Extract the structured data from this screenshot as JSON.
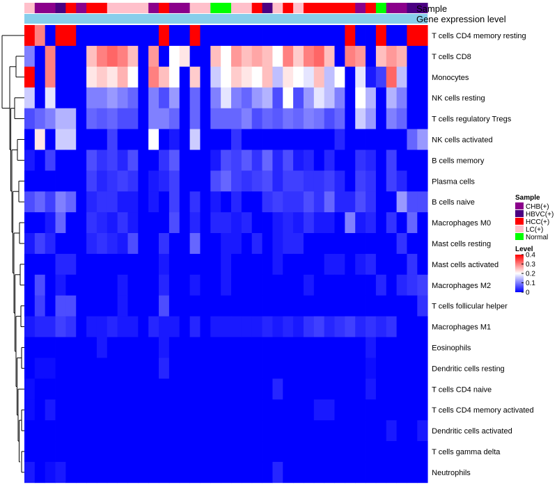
{
  "chart_data": {
    "type": "heatmap",
    "annotation_labels": {
      "sample": "Sample",
      "expression": "Gene expression level"
    },
    "row_labels": [
      "T cells CD4 memory resting",
      "T cells CD8",
      "Monocytes",
      "NK cells resting",
      "T cells regulatory  Tregs",
      "NK cells activated",
      "B cells memory",
      "Plasma cells",
      "B cells naive",
      "Macrophages M0",
      "Mast cells resting",
      "Mast cells activated",
      "Macrophages M2",
      "T cells follicular helper",
      "Macrophages M1",
      "Eosinophils",
      "Dendritic cells resting",
      "T cells CD4 naive",
      "T cells CD4 memory activated",
      "Dendritic cells activated",
      "T cells gamma delta",
      "Neutrophils"
    ],
    "sample_groups": [
      {
        "name": "CHB(+)",
        "color": "#8B008B"
      },
      {
        "name": "HBVC(+)",
        "color": "#4B0082"
      },
      {
        "name": "HCC(+)",
        "color": "#FF0000"
      },
      {
        "name": "LC(+)",
        "color": "#FFC0CB"
      },
      {
        "name": "Normal",
        "color": "#00FF00"
      }
    ],
    "column_groups": [
      3,
      0,
      0,
      1,
      2,
      0,
      2,
      2,
      3,
      3,
      3,
      3,
      0,
      2,
      0,
      0,
      3,
      3,
      4,
      4,
      3,
      3,
      2,
      1,
      3,
      2,
      3,
      2,
      2,
      2,
      2,
      2,
      0,
      2,
      4,
      0,
      0,
      1,
      1
    ],
    "expression_bar_color": "#87CEEB",
    "values": [
      [
        0.4,
        0.3,
        0.0,
        0.4,
        0.4,
        0.0,
        0.0,
        0.0,
        0.0,
        0.0,
        0.0,
        0.0,
        0.0,
        0.4,
        0.0,
        0.0,
        0.4,
        0.0,
        0.0,
        0.0,
        0.0,
        0.0,
        0.0,
        0.0,
        0.0,
        0.0,
        0.0,
        0.0,
        0.0,
        0.0,
        0.0,
        0.4,
        0.0,
        0.0,
        0.4,
        0.0,
        0.0,
        0.4,
        0.4
      ],
      [
        0.1,
        0.0,
        0.3,
        0.0,
        0.0,
        0.0,
        0.25,
        0.3,
        0.32,
        0.3,
        0.25,
        0.0,
        0.28,
        0.0,
        0.2,
        0.22,
        0.0,
        0.0,
        0.25,
        0.2,
        0.28,
        0.25,
        0.27,
        0.25,
        0.2,
        0.3,
        0.24,
        0.3,
        0.32,
        0.25,
        0.0,
        0.3,
        0.28,
        0.0,
        0.25,
        0.28,
        0.26,
        0.0,
        0.0
      ],
      [
        0.4,
        0.0,
        0.3,
        0.0,
        0.0,
        0.0,
        0.22,
        0.24,
        0.22,
        0.26,
        0.2,
        0.0,
        0.3,
        0.25,
        0.2,
        0.0,
        0.24,
        0.0,
        0.16,
        0.2,
        0.24,
        0.22,
        0.2,
        0.25,
        0.15,
        0.22,
        0.2,
        0.18,
        0.25,
        0.15,
        0.2,
        0.0,
        0.18,
        0.02,
        0.05,
        0.32,
        0.15,
        0.0,
        0.0
      ],
      [
        0.16,
        0.0,
        0.18,
        0.0,
        0.0,
        0.0,
        0.1,
        0.1,
        0.12,
        0.1,
        0.08,
        0.0,
        0.1,
        0.06,
        0.12,
        0.0,
        0.08,
        0.0,
        0.1,
        0.18,
        0.1,
        0.08,
        0.12,
        0.14,
        0.06,
        0.2,
        0.06,
        0.12,
        0.18,
        0.15,
        0.1,
        0.0,
        0.2,
        0.14,
        0.0,
        0.14,
        0.1,
        0.0,
        0.0
      ],
      [
        0.06,
        0.08,
        0.1,
        0.14,
        0.14,
        0.0,
        0.08,
        0.07,
        0.08,
        0.06,
        0.06,
        0.0,
        0.1,
        0.1,
        0.08,
        0.0,
        0.08,
        0.0,
        0.08,
        0.08,
        0.08,
        0.1,
        0.06,
        0.08,
        0.07,
        0.09,
        0.08,
        0.1,
        0.09,
        0.06,
        0.08,
        0.0,
        0.16,
        0.12,
        0.0,
        0.1,
        0.08,
        0.0,
        0.0
      ],
      [
        0.0,
        0.22,
        0.0,
        0.16,
        0.16,
        0.0,
        0.0,
        0.0,
        0.05,
        0.0,
        0.0,
        0.0,
        0.2,
        0.0,
        0.02,
        0.0,
        0.16,
        0.0,
        0.0,
        0.0,
        0.04,
        0.0,
        0.0,
        0.0,
        0.0,
        0.0,
        0.0,
        0.0,
        0.0,
        0.0,
        0.03,
        0.0,
        0.0,
        0.0,
        0.0,
        0.0,
        0.0,
        0.08,
        0.12
      ],
      [
        0.02,
        0.0,
        0.05,
        0.0,
        0.0,
        0.0,
        0.06,
        0.04,
        0.05,
        0.03,
        0.06,
        0.0,
        0.0,
        0.04,
        0.07,
        0.0,
        0.0,
        0.0,
        0.02,
        0.06,
        0.05,
        0.07,
        0.04,
        0.08,
        0.03,
        0.06,
        0.02,
        0.03,
        0.0,
        0.03,
        0.0,
        0.0,
        0.04,
        0.03,
        0.0,
        0.05,
        0.0,
        0.0,
        0.0
      ],
      [
        0.0,
        0.0,
        0.0,
        0.0,
        0.0,
        0.0,
        0.05,
        0.03,
        0.04,
        0.05,
        0.04,
        0.0,
        0.02,
        0.03,
        0.05,
        0.0,
        0.0,
        0.0,
        0.06,
        0.08,
        0.05,
        0.04,
        0.05,
        0.06,
        0.03,
        0.05,
        0.05,
        0.04,
        0.04,
        0.05,
        0.03,
        0.0,
        0.05,
        0.04,
        0.0,
        0.05,
        0.03,
        0.0,
        0.0
      ],
      [
        0.06,
        0.08,
        0.05,
        0.1,
        0.08,
        0.0,
        0.03,
        0.04,
        0.04,
        0.02,
        0.02,
        0.0,
        0.02,
        0.0,
        0.05,
        0.0,
        0.04,
        0.0,
        0.02,
        0.0,
        0.03,
        0.0,
        0.0,
        0.04,
        0.05,
        0.04,
        0.04,
        0.06,
        0.04,
        0.08,
        0.03,
        0.03,
        0.06,
        0.04,
        0.0,
        0.0,
        0.12,
        0.06,
        0.06
      ],
      [
        0.0,
        0.0,
        0.02,
        0.08,
        0.0,
        0.0,
        0.04,
        0.03,
        0.02,
        0.04,
        0.02,
        0.0,
        0.0,
        0.0,
        0.06,
        0.0,
        0.03,
        0.0,
        0.03,
        0.03,
        0.02,
        0.03,
        0.0,
        0.0,
        0.02,
        0.03,
        0.02,
        0.04,
        0.02,
        0.02,
        0.0,
        0.1,
        0.02,
        0.03,
        0.0,
        0.04,
        0.0,
        0.08,
        0.0
      ],
      [
        0.02,
        0.05,
        0.03,
        0.0,
        0.0,
        0.0,
        0.03,
        0.04,
        0.03,
        0.02,
        0.06,
        0.0,
        0.0,
        0.04,
        0.0,
        0.0,
        0.08,
        0.0,
        0.0,
        0.02,
        0.02,
        0.0,
        0.03,
        0.0,
        0.02,
        0.03,
        0.03,
        0.0,
        0.0,
        0.0,
        0.0,
        0.0,
        0.0,
        0.0,
        0.0,
        0.0,
        0.04,
        0.0,
        0.0
      ],
      [
        0.0,
        0.0,
        0.0,
        0.03,
        0.03,
        0.0,
        0.0,
        0.0,
        0.0,
        0.0,
        0.0,
        0.0,
        0.0,
        0.02,
        0.0,
        0.0,
        0.0,
        0.0,
        0.0,
        0.02,
        0.0,
        0.0,
        0.0,
        0.0,
        0.02,
        0.0,
        0.0,
        0.0,
        0.0,
        0.02,
        0.02,
        0.0,
        0.02,
        0.03,
        0.0,
        0.0,
        0.0,
        0.04,
        0.0
      ],
      [
        0.0,
        0.06,
        0.0,
        0.02,
        0.0,
        0.0,
        0.0,
        0.0,
        0.0,
        0.02,
        0.0,
        0.0,
        0.0,
        0.03,
        0.0,
        0.0,
        0.02,
        0.0,
        0.0,
        0.02,
        0.0,
        0.0,
        0.0,
        0.0,
        0.0,
        0.0,
        0.0,
        0.02,
        0.0,
        0.0,
        0.0,
        0.0,
        0.0,
        0.0,
        0.03,
        0.0,
        0.03,
        0.04,
        0.05
      ],
      [
        0.0,
        0.05,
        0.0,
        0.06,
        0.06,
        0.0,
        0.0,
        0.0,
        0.0,
        0.02,
        0.0,
        0.0,
        0.0,
        0.06,
        0.0,
        0.0,
        0.0,
        0.0,
        0.0,
        0.0,
        0.0,
        0.0,
        0.0,
        0.0,
        0.0,
        0.0,
        0.0,
        0.0,
        0.0,
        0.0,
        0.0,
        0.0,
        0.0,
        0.0,
        0.0,
        0.0,
        0.0,
        0.0,
        0.04
      ],
      [
        0.02,
        0.03,
        0.03,
        0.05,
        0.04,
        0.0,
        0.02,
        0.02,
        0.03,
        0.02,
        0.02,
        0.0,
        0.03,
        0.02,
        0.02,
        0.0,
        0.03,
        0.0,
        0.02,
        0.02,
        0.02,
        0.02,
        0.02,
        0.03,
        0.02,
        0.03,
        0.02,
        0.04,
        0.05,
        0.03,
        0.04,
        0.05,
        0.03,
        0.04,
        0.03,
        0.04,
        0.0,
        0.0,
        0.0
      ],
      [
        0.0,
        0.0,
        0.0,
        0.0,
        0.0,
        0.0,
        0.0,
        0.02,
        0.0,
        0.0,
        0.0,
        0.0,
        0.0,
        0.02,
        0.0,
        0.0,
        0.0,
        0.0,
        0.0,
        0.0,
        0.0,
        0.0,
        0.0,
        0.0,
        0.0,
        0.0,
        0.0,
        0.0,
        0.0,
        0.0,
        0.0,
        0.0,
        0.0,
        0.02,
        0.0,
        0.0,
        0.0,
        0.0,
        0.0
      ],
      [
        0.0,
        0.01,
        0.01,
        0.0,
        0.0,
        0.0,
        0.0,
        0.0,
        0.0,
        0.0,
        0.0,
        0.0,
        0.0,
        0.03,
        0.0,
        0.0,
        0.0,
        0.0,
        0.0,
        0.0,
        0.0,
        0.0,
        0.0,
        0.0,
        0.0,
        0.0,
        0.0,
        0.0,
        0.0,
        0.0,
        0.0,
        0.0,
        0.0,
        0.01,
        0.0,
        0.0,
        0.0,
        0.0,
        0.0
      ],
      [
        0.01,
        0.0,
        0.0,
        0.0,
        0.0,
        0.0,
        0.0,
        0.0,
        0.0,
        0.0,
        0.0,
        0.0,
        0.0,
        0.0,
        0.0,
        0.0,
        0.0,
        0.0,
        0.0,
        0.0,
        0.0,
        0.0,
        0.0,
        0.0,
        0.03,
        0.0,
        0.0,
        0.0,
        0.0,
        0.0,
        0.0,
        0.0,
        0.0,
        0.02,
        0.0,
        0.0,
        0.0,
        0.0,
        0.0
      ],
      [
        0.01,
        0.0,
        0.02,
        0.0,
        0.0,
        0.0,
        0.0,
        0.0,
        0.0,
        0.0,
        0.0,
        0.0,
        0.0,
        0.0,
        0.0,
        0.0,
        0.0,
        0.0,
        0.0,
        0.0,
        0.0,
        0.0,
        0.0,
        0.0,
        0.0,
        0.0,
        0.0,
        0.0,
        0.02,
        0.02,
        0.0,
        0.0,
        0.0,
        0.0,
        0.0,
        0.0,
        0.0,
        0.0,
        0.0
      ],
      [
        0.0,
        0.0,
        0.0,
        0.0,
        0.0,
        0.0,
        0.0,
        0.0,
        0.0,
        0.0,
        0.0,
        0.0,
        0.0,
        0.0,
        0.0,
        0.0,
        0.0,
        0.0,
        0.0,
        0.0,
        0.0,
        0.0,
        0.0,
        0.0,
        0.0,
        0.0,
        0.0,
        0.0,
        0.0,
        0.0,
        0.0,
        0.0,
        0.0,
        0.0,
        0.0,
        0.02,
        0.0,
        0.0,
        0.02
      ],
      [
        0.0,
        0.0,
        0.0,
        0.0,
        0.0,
        0.0,
        0.0,
        0.0,
        0.0,
        0.0,
        0.0,
        0.0,
        0.0,
        0.0,
        0.0,
        0.0,
        0.0,
        0.0,
        0.0,
        0.0,
        0.0,
        0.0,
        0.0,
        0.0,
        0.0,
        0.0,
        0.0,
        0.0,
        0.0,
        0.0,
        0.0,
        0.0,
        0.0,
        0.0,
        0.0,
        0.0,
        0.0,
        0.0,
        0.0
      ],
      [
        0.02,
        0.0,
        0.01,
        0.02,
        0.0,
        0.0,
        0.0,
        0.0,
        0.0,
        0.0,
        0.0,
        0.0,
        0.0,
        0.0,
        0.0,
        0.0,
        0.0,
        0.0,
        0.0,
        0.0,
        0.0,
        0.0,
        0.0,
        0.0,
        0.03,
        0.0,
        0.0,
        0.0,
        0.0,
        0.0,
        0.0,
        0.0,
        0.0,
        0.0,
        0.0,
        0.0,
        0.0,
        0.0,
        0.0
      ]
    ],
    "color_scale": {
      "min": 0,
      "mid": 0.2,
      "max": 0.4,
      "low_color": "#0000FF",
      "mid_color": "#FFFFFF",
      "high_color": "#FF0000"
    },
    "legend": {
      "sample_title": "Sample",
      "level_title": "Level",
      "level_ticks": [
        "0.4",
        "0.3",
        "0.2",
        "0.1",
        "0"
      ],
      "level_tick_values": [
        0.4,
        0.3,
        0.2,
        0.1,
        0
      ]
    }
  }
}
